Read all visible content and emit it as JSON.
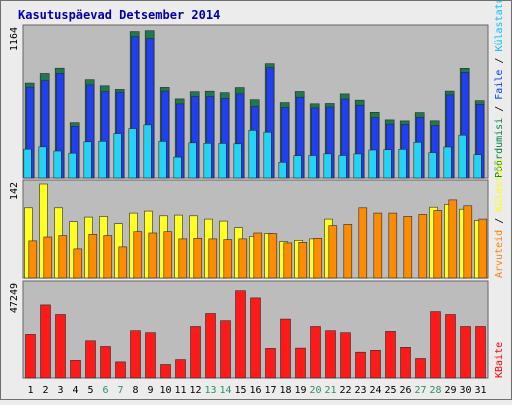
{
  "chart_data": {
    "type": "bar",
    "title": "Kasutuspäevad Detsember 2014",
    "categories": [
      "1",
      "2",
      "3",
      "4",
      "5",
      "6",
      "7",
      "8",
      "9",
      "10",
      "11",
      "12",
      "13",
      "14",
      "15",
      "16",
      "17",
      "18",
      "19",
      "20",
      "21",
      "22",
      "23",
      "24",
      "25",
      "26",
      "27",
      "28",
      "29",
      "30",
      "31"
    ],
    "weekend_days": [
      "6",
      "7",
      "13",
      "14",
      "20",
      "21",
      "27",
      "28"
    ],
    "panels": [
      {
        "name": "top",
        "y_label": "1164",
        "ylim": [
          0,
          1164
        ],
        "legend": [
          {
            "text": "Pöördumisi",
            "color": "#008040"
          },
          {
            "text": "Faile",
            "color": "#0040ff"
          },
          {
            "text": "Külastatud lehti",
            "color": "#00c0ff"
          }
        ],
        "series": [
          {
            "name": "Pöördumisi",
            "color": "#1e7a4a",
            "values": [
              741,
              816,
              858,
              432,
              768,
              720,
              692,
              1144,
              1151,
              708,
              618,
              674,
              678,
              666,
              706,
              612,
              893,
              589,
              676,
              580,
              582,
              657,
              608,
              513,
              454,
              446,
              511,
              447,
              679,
              857,
              604
            ]
          },
          {
            "name": "Faile",
            "color": "#1f3ff0",
            "values": [
              710,
              760,
              818,
              404,
              728,
              675,
              671,
              1104,
              1090,
              679,
              579,
              637,
              637,
              622,
              658,
              558,
              862,
              551,
              631,
              548,
              555,
              617,
              569,
              471,
              421,
              418,
              474,
              410,
              650,
              826,
              576
            ]
          },
          {
            "name": "Külastatud lehti",
            "color": "#22d4f4",
            "values": [
              225,
              244,
              211,
              194,
              283,
              287,
              347,
              386,
              415,
              286,
              163,
              275,
              271,
              270,
              267,
              373,
              358,
              123,
              174,
              176,
              189,
              176,
              188,
              219,
              221,
              224,
              279,
              198,
              242,
              334,
              182
            ]
          }
        ]
      },
      {
        "name": "middle",
        "y_label": "142",
        "ylim": [
          0,
          142
        ],
        "legend": [
          {
            "text": "Arvuteid",
            "color": "#ff8000"
          },
          {
            "text": "Külastusi",
            "color": "#ffff00"
          }
        ],
        "series": [
          {
            "name": "Külastusi",
            "color": "#ffff22",
            "values": [
              106,
              142,
              106,
              85,
              92,
              93,
              82,
              98,
              101,
              94,
              95,
              94,
              89,
              86,
              76,
              63,
              67,
              55,
              57,
              59,
              89,
              0,
              0,
              0,
              0,
              0,
              0,
              107,
              111,
              104,
              87
            ]
          },
          {
            "name": "Arvuteid",
            "color": "#ff8c00",
            "values": [
              56,
              62,
              64,
              44,
              66,
              64,
              47,
              70,
              68,
              70,
              59,
              60,
              59,
              58,
              59,
              68,
              67,
              53,
              54,
              60,
              79,
              81,
              106,
              98,
              98,
              93,
              96,
              102,
              118,
              109,
              89
            ]
          }
        ]
      },
      {
        "name": "bottom",
        "y_label": "47249",
        "ylim": [
          0,
          47249
        ],
        "legend": [
          {
            "text": "KBaite",
            "color": "#ff0000"
          }
        ],
        "series": [
          {
            "name": "KBaite",
            "color": "#ff1a1a",
            "values": [
              22133,
              37134,
              32278,
              8929,
              18922,
              16016,
              8199,
              24050,
              23013,
              6848,
              9324,
              26182,
              32770,
              29130,
              44350,
              40680,
              15047,
              29939,
              15190,
              26182,
              24050,
              23013,
              13103,
              14078,
              23659,
              15580,
              9908,
              33742,
              32270,
              26182,
              26182
            ]
          }
        ]
      }
    ]
  }
}
